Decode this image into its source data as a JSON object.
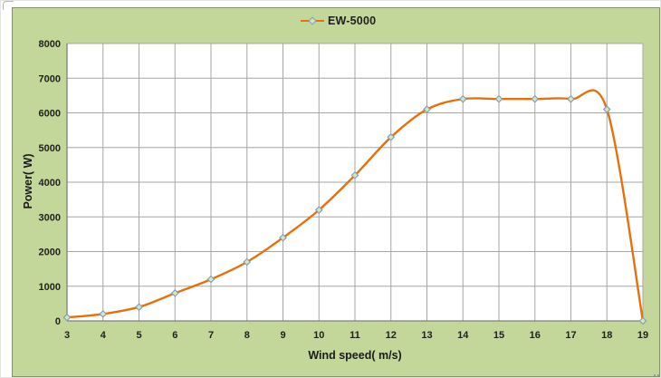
{
  "window": {
    "background_color": "#ffffff",
    "chart_background_color": "#c4d79b",
    "chart_border_color": "#85906e"
  },
  "chart_data": {
    "type": "line",
    "title": "",
    "legend": [
      "EW-5000"
    ],
    "legend_position": "top-center",
    "x": [
      3,
      4,
      5,
      6,
      7,
      8,
      9,
      10,
      11,
      12,
      13,
      14,
      15,
      16,
      17,
      18,
      19
    ],
    "xtick_labels": [
      "3",
      "4",
      "5",
      "6",
      "7",
      "8",
      "9",
      "10",
      "11",
      "12",
      "13",
      "14",
      "15",
      "16",
      "17",
      "18",
      "19"
    ],
    "series": [
      {
        "name": "EW-5000",
        "values": [
          100,
          200,
          400,
          800,
          1200,
          1700,
          2400,
          3200,
          4200,
          5300,
          6100,
          6400,
          6400,
          6400,
          6400,
          6100,
          0
        ]
      }
    ],
    "xlabel": "Wind speed( m/s)",
    "ylabel": "Power( W)",
    "xlim": [
      3,
      19
    ],
    "ylim": [
      0,
      8000
    ],
    "ytick_step": 1000,
    "ytick_labels": [
      "0",
      "1000",
      "2000",
      "3000",
      "4000",
      "5000",
      "6000",
      "7000",
      "8000"
    ],
    "grid": true,
    "smooth_line": true,
    "plot_background": "#ffffff",
    "grid_color": "#a6a6a6",
    "axis_color": "#7f7f7f",
    "line_color": "#e8700a",
    "marker_shape": "diamond",
    "marker_fill": "#d7e4bc",
    "marker_stroke": "#7f9db9",
    "tick_text_color": "#1f1f1f"
  }
}
